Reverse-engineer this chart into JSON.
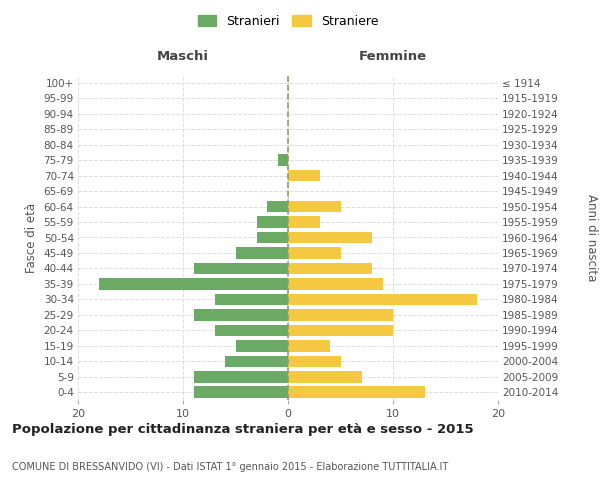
{
  "age_groups": [
    "0-4",
    "5-9",
    "10-14",
    "15-19",
    "20-24",
    "25-29",
    "30-34",
    "35-39",
    "40-44",
    "45-49",
    "50-54",
    "55-59",
    "60-64",
    "65-69",
    "70-74",
    "75-79",
    "80-84",
    "85-89",
    "90-94",
    "95-99",
    "100+"
  ],
  "birth_years": [
    "2010-2014",
    "2005-2009",
    "2000-2004",
    "1995-1999",
    "1990-1994",
    "1985-1989",
    "1980-1984",
    "1975-1979",
    "1970-1974",
    "1965-1969",
    "1960-1964",
    "1955-1959",
    "1950-1954",
    "1945-1949",
    "1940-1944",
    "1935-1939",
    "1930-1934",
    "1925-1929",
    "1920-1924",
    "1915-1919",
    "≤ 1914"
  ],
  "maschi": [
    9,
    9,
    6,
    5,
    7,
    9,
    7,
    18,
    9,
    5,
    3,
    3,
    2,
    0,
    0,
    1,
    0,
    0,
    0,
    0,
    0
  ],
  "femmine": [
    13,
    7,
    5,
    4,
    10,
    10,
    18,
    9,
    8,
    5,
    8,
    3,
    5,
    0,
    3,
    0,
    0,
    0,
    0,
    0,
    0
  ],
  "male_color": "#6aaa64",
  "female_color": "#f5c842",
  "title": "Popolazione per cittadinanza straniera per età e sesso - 2015",
  "subtitle": "COMUNE DI BRESSANVIDO (VI) - Dati ISTAT 1° gennaio 2015 - Elaborazione TUTTITALIA.IT",
  "xlabel_left": "Maschi",
  "xlabel_right": "Femmine",
  "ylabel_left": "Fasce di età",
  "ylabel_right": "Anni di nascita",
  "legend_male": "Stranieri",
  "legend_female": "Straniere",
  "xlim": 20,
  "background_color": "#ffffff",
  "grid_color": "#dddddd"
}
